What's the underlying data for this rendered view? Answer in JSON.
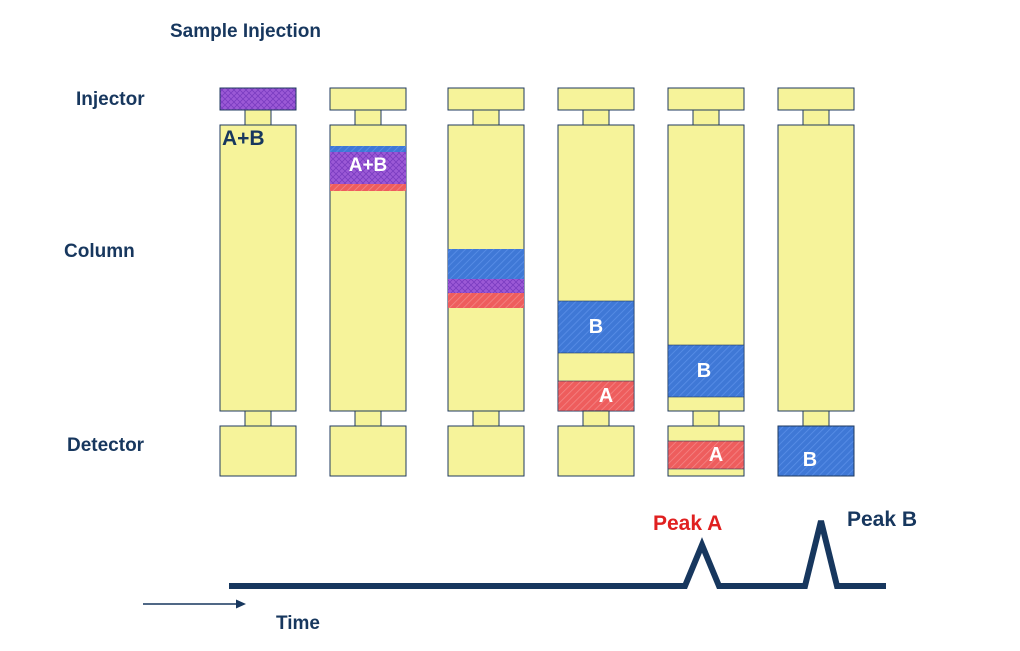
{
  "title": "Sample Injection",
  "row_labels": {
    "injector": "Injector",
    "column": "Column",
    "detector": "Detector"
  },
  "axis": {
    "time_label": "Time"
  },
  "peaks": {
    "a_label": "Peak A",
    "b_label": "Peak B"
  },
  "band_labels": {
    "mixture": "A+B",
    "a": "A",
    "b": "B"
  },
  "colors": {
    "body_fill": "#f6f39a",
    "outline": "#1f3a5f",
    "mixture": "#9b59d6",
    "component_a": "#ee5d5d",
    "component_b": "#3f78d6",
    "peak_a_text": "#e02020",
    "dark_text": "#17375e"
  }
}
